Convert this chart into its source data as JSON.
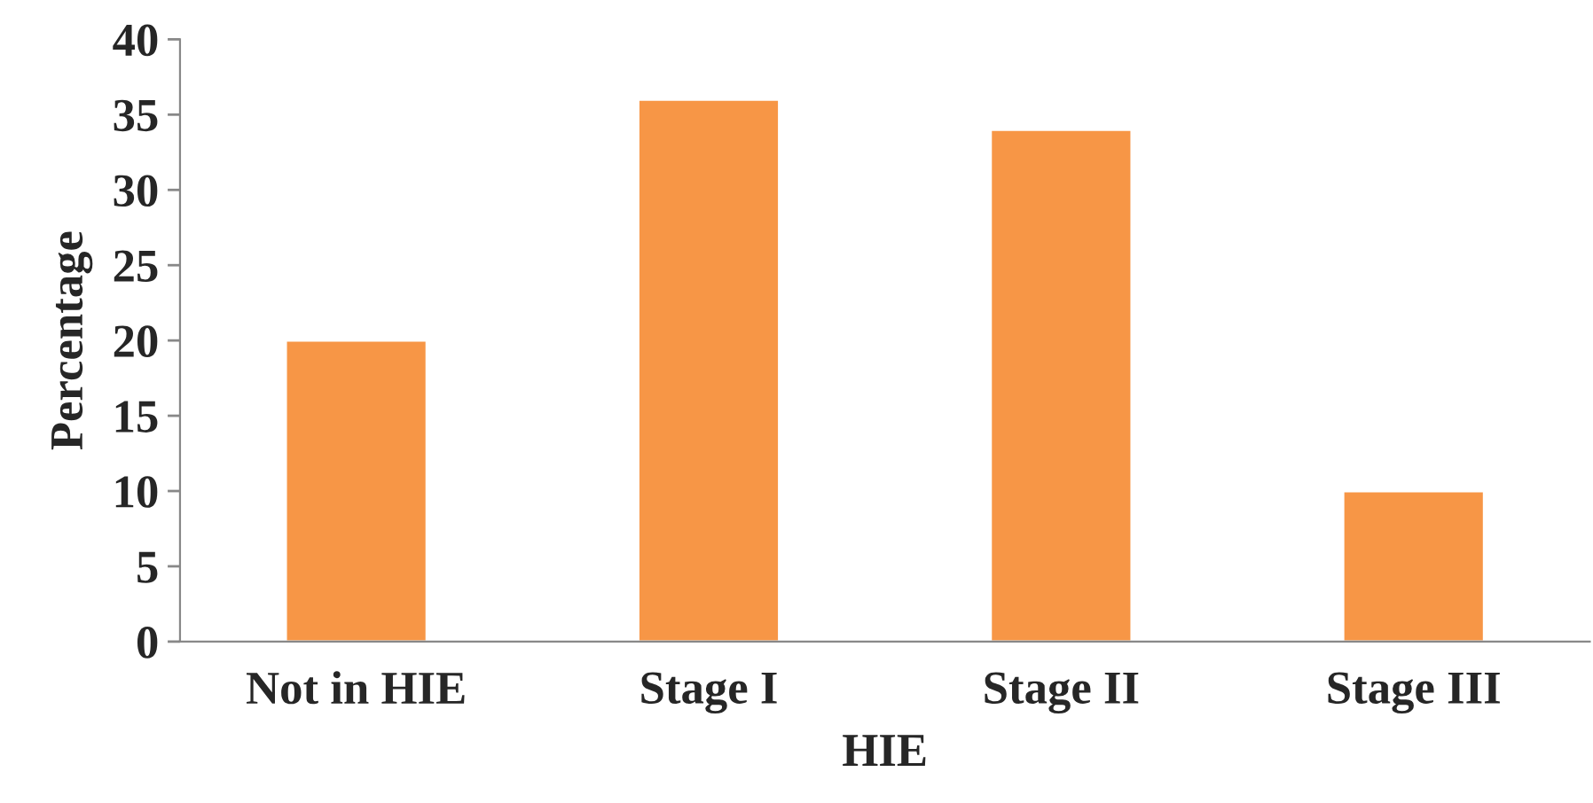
{
  "chart_data": {
    "type": "bar",
    "xlabel": "HIE",
    "ylabel": "Percentage",
    "categories": [
      "Not in HIE",
      "Stage I",
      "Stage II",
      "Stage III"
    ],
    "values": [
      20,
      36,
      34,
      10
    ],
    "color": "#f79646",
    "ylim": [
      0,
      40
    ],
    "yticks": [
      0,
      5,
      10,
      15,
      20,
      25,
      30,
      35,
      40
    ],
    "grid": false,
    "legend": false
  }
}
